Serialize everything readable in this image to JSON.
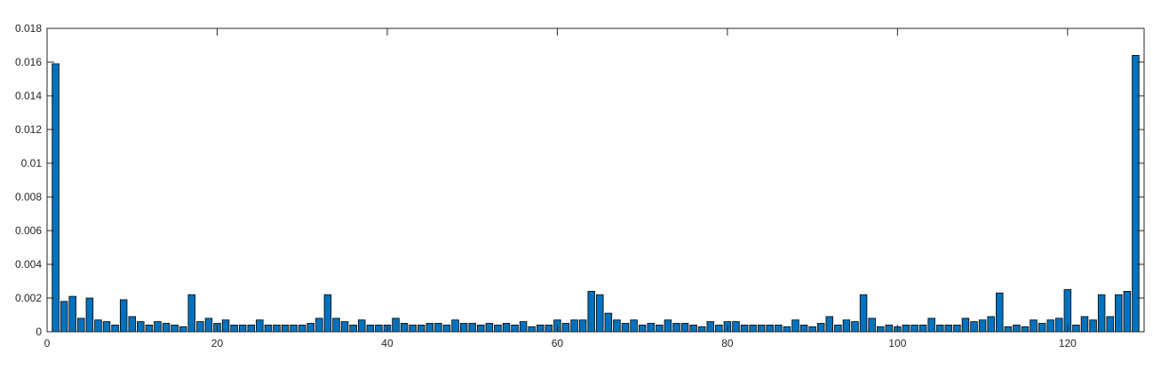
{
  "chart_data": {
    "type": "bar",
    "title": "",
    "xlabel": "",
    "ylabel": "",
    "xlim": [
      0,
      129
    ],
    "ylim": [
      0,
      0.018
    ],
    "x_ticks": [
      0,
      20,
      40,
      60,
      80,
      100,
      120
    ],
    "x_tick_labels": [
      "0",
      "20",
      "40",
      "60",
      "80",
      "100",
      "120"
    ],
    "y_ticks": [
      0,
      0.002,
      0.004,
      0.006,
      0.008,
      0.01,
      0.012,
      0.014,
      0.016,
      0.018
    ],
    "y_tick_labels": [
      "0",
      "0.002",
      "0.004",
      "0.006",
      "0.008",
      "0.01",
      "0.012",
      "0.014",
      "0.016",
      "0.018"
    ],
    "bar_color": "#0072BD",
    "edge_color": "#000000",
    "grid": false,
    "x": [
      1,
      2,
      3,
      4,
      5,
      6,
      7,
      8,
      9,
      10,
      11,
      12,
      13,
      14,
      15,
      16,
      17,
      18,
      19,
      20,
      21,
      22,
      23,
      24,
      25,
      26,
      27,
      28,
      29,
      30,
      31,
      32,
      33,
      34,
      35,
      36,
      37,
      38,
      39,
      40,
      41,
      42,
      43,
      44,
      45,
      46,
      47,
      48,
      49,
      50,
      51,
      52,
      53,
      54,
      55,
      56,
      57,
      58,
      59,
      60,
      61,
      62,
      63,
      64,
      65,
      66,
      67,
      68,
      69,
      70,
      71,
      72,
      73,
      74,
      75,
      76,
      77,
      78,
      79,
      80,
      81,
      82,
      83,
      84,
      85,
      86,
      87,
      88,
      89,
      90,
      91,
      92,
      93,
      94,
      95,
      96,
      97,
      98,
      99,
      100,
      101,
      102,
      103,
      104,
      105,
      106,
      107,
      108,
      109,
      110,
      111,
      112,
      113,
      114,
      115,
      116,
      117,
      118,
      119,
      120,
      121,
      122,
      123,
      124,
      125,
      126,
      127,
      128
    ],
    "values": [
      0.0159,
      0.0018,
      0.0021,
      0.0008,
      0.002,
      0.0007,
      0.0006,
      0.0004,
      0.0019,
      0.0009,
      0.0006,
      0.0004,
      0.0006,
      0.0005,
      0.0004,
      0.0003,
      0.0022,
      0.0006,
      0.0008,
      0.0005,
      0.0007,
      0.0004,
      0.0004,
      0.0004,
      0.0007,
      0.0004,
      0.0004,
      0.0004,
      0.0004,
      0.0004,
      0.0005,
      0.0008,
      0.0022,
      0.0008,
      0.0006,
      0.0004,
      0.0007,
      0.0004,
      0.0004,
      0.0004,
      0.0008,
      0.0005,
      0.0004,
      0.0004,
      0.0005,
      0.0005,
      0.0004,
      0.0007,
      0.0005,
      0.0005,
      0.0004,
      0.0005,
      0.0004,
      0.0005,
      0.0004,
      0.0006,
      0.0003,
      0.0004,
      0.0004,
      0.0007,
      0.0005,
      0.0007,
      0.0007,
      0.0024,
      0.0022,
      0.0011,
      0.0007,
      0.0005,
      0.0007,
      0.0004,
      0.0005,
      0.0004,
      0.0007,
      0.0005,
      0.0005,
      0.0004,
      0.0003,
      0.0006,
      0.0004,
      0.0006,
      0.0006,
      0.0004,
      0.0004,
      0.0004,
      0.0004,
      0.0004,
      0.0003,
      0.0007,
      0.0004,
      0.0003,
      0.0005,
      0.0009,
      0.0004,
      0.0007,
      0.0006,
      0.0022,
      0.0008,
      0.0003,
      0.0004,
      0.0003,
      0.0004,
      0.0004,
      0.0004,
      0.0008,
      0.0004,
      0.0004,
      0.0004,
      0.0008,
      0.0006,
      0.0007,
      0.0009,
      0.0023,
      0.0003,
      0.0004,
      0.0003,
      0.0007,
      0.0005,
      0.0007,
      0.0008,
      0.0025,
      0.0004,
      0.0009,
      0.0007,
      0.0022,
      0.0009,
      0.0022,
      0.0024,
      0.0164
    ]
  }
}
